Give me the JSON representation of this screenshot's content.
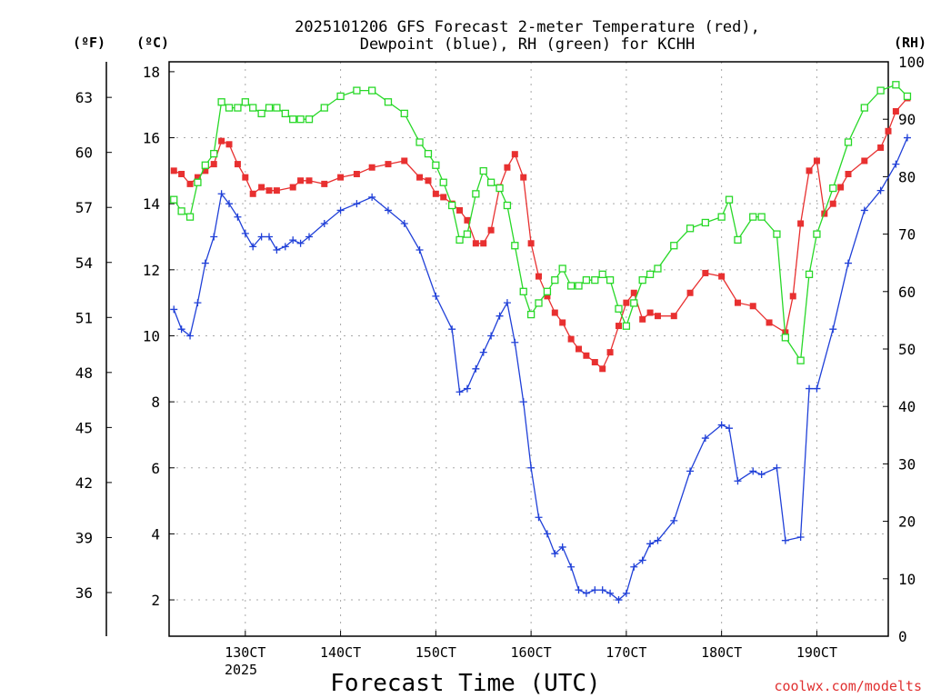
{
  "chart_data": {
    "type": "line",
    "title_line1": "2025101206 GFS Forecast 2-meter Temperature (red),",
    "title_line2": "Dewpoint (blue), RH (green) for KCHH",
    "xlabel": "Forecast Time (UTC)",
    "credit": "coolwx.com/modelts",
    "unit_f": "(ºF)",
    "unit_c": "(ºC)",
    "unit_rh": "(RH)",
    "year_label": "2025",
    "xlim": [
      12.2,
      19.75
    ],
    "ylim_c": [
      0.9,
      18.3
    ],
    "ylim_rh": [
      0,
      100
    ],
    "x_ticks": [
      {
        "x": 13,
        "label": "130CT"
      },
      {
        "x": 14,
        "label": "140CT"
      },
      {
        "x": 15,
        "label": "150CT"
      },
      {
        "x": 16,
        "label": "160CT"
      },
      {
        "x": 17,
        "label": "170CT"
      },
      {
        "x": 18,
        "label": "180CT"
      },
      {
        "x": 19,
        "label": "190CT"
      }
    ],
    "c_ticks": [
      2,
      4,
      6,
      8,
      10,
      12,
      14,
      16,
      18
    ],
    "f_ticks": [
      36,
      39,
      42,
      45,
      48,
      51,
      54,
      57,
      60,
      63
    ],
    "rh_ticks": [
      0,
      10,
      20,
      30,
      40,
      50,
      60,
      70,
      80,
      90,
      100
    ],
    "series": [
      {
        "name": "Temperature",
        "color": "#e83030",
        "marker": "filled-square",
        "axis": "c",
        "points": [
          [
            12.25,
            15.0
          ],
          [
            12.33,
            14.9
          ],
          [
            12.42,
            14.6
          ],
          [
            12.5,
            14.8
          ],
          [
            12.58,
            15.0
          ],
          [
            12.67,
            15.2
          ],
          [
            12.75,
            15.9
          ],
          [
            12.83,
            15.8
          ],
          [
            12.92,
            15.2
          ],
          [
            13.0,
            14.8
          ],
          [
            13.08,
            14.3
          ],
          [
            13.17,
            14.5
          ],
          [
            13.25,
            14.4
          ],
          [
            13.33,
            14.4
          ],
          [
            13.5,
            14.5
          ],
          [
            13.58,
            14.7
          ],
          [
            13.67,
            14.7
          ],
          [
            13.83,
            14.6
          ],
          [
            14.0,
            14.8
          ],
          [
            14.17,
            14.9
          ],
          [
            14.33,
            15.1
          ],
          [
            14.5,
            15.2
          ],
          [
            14.67,
            15.3
          ],
          [
            14.83,
            14.8
          ],
          [
            14.92,
            14.7
          ],
          [
            15.0,
            14.3
          ],
          [
            15.08,
            14.2
          ],
          [
            15.17,
            14.0
          ],
          [
            15.25,
            13.8
          ],
          [
            15.33,
            13.5
          ],
          [
            15.42,
            12.8
          ],
          [
            15.5,
            12.8
          ],
          [
            15.58,
            13.2
          ],
          [
            15.67,
            14.5
          ],
          [
            15.75,
            15.1
          ],
          [
            15.83,
            15.5
          ],
          [
            15.92,
            14.8
          ],
          [
            16.0,
            12.8
          ],
          [
            16.08,
            11.8
          ],
          [
            16.17,
            11.2
          ],
          [
            16.25,
            10.7
          ],
          [
            16.33,
            10.4
          ],
          [
            16.42,
            9.9
          ],
          [
            16.5,
            9.6
          ],
          [
            16.58,
            9.4
          ],
          [
            16.67,
            9.2
          ],
          [
            16.75,
            9.0
          ],
          [
            16.83,
            9.5
          ],
          [
            16.92,
            10.3
          ],
          [
            17.0,
            11.0
          ],
          [
            17.08,
            11.3
          ],
          [
            17.17,
            10.5
          ],
          [
            17.25,
            10.7
          ],
          [
            17.33,
            10.6
          ],
          [
            17.5,
            10.6
          ],
          [
            17.67,
            11.3
          ],
          [
            17.83,
            11.9
          ],
          [
            18.0,
            11.8
          ],
          [
            18.17,
            11.0
          ],
          [
            18.33,
            10.9
          ],
          [
            18.5,
            10.4
          ],
          [
            18.67,
            10.1
          ],
          [
            18.75,
            11.2
          ],
          [
            18.83,
            13.4
          ],
          [
            18.92,
            15.0
          ],
          [
            19.0,
            15.3
          ],
          [
            19.08,
            13.7
          ],
          [
            19.17,
            14.0
          ],
          [
            19.25,
            14.5
          ],
          [
            19.33,
            14.9
          ],
          [
            19.5,
            15.3
          ],
          [
            19.67,
            15.7
          ],
          [
            19.75,
            16.2
          ],
          [
            19.83,
            16.8
          ],
          [
            19.95,
            17.2
          ]
        ]
      },
      {
        "name": "Dewpoint",
        "color": "#2040d8",
        "marker": "plus",
        "axis": "c",
        "points": [
          [
            12.25,
            10.8
          ],
          [
            12.33,
            10.2
          ],
          [
            12.42,
            10.0
          ],
          [
            12.5,
            11.0
          ],
          [
            12.58,
            12.2
          ],
          [
            12.67,
            13.0
          ],
          [
            12.75,
            14.3
          ],
          [
            12.83,
            14.0
          ],
          [
            12.92,
            13.6
          ],
          [
            13.0,
            13.1
          ],
          [
            13.08,
            12.7
          ],
          [
            13.17,
            13.0
          ],
          [
            13.25,
            13.0
          ],
          [
            13.33,
            12.6
          ],
          [
            13.42,
            12.7
          ],
          [
            13.5,
            12.9
          ],
          [
            13.58,
            12.8
          ],
          [
            13.67,
            13.0
          ],
          [
            13.83,
            13.4
          ],
          [
            14.0,
            13.8
          ],
          [
            14.17,
            14.0
          ],
          [
            14.33,
            14.2
          ],
          [
            14.5,
            13.8
          ],
          [
            14.67,
            13.4
          ],
          [
            14.83,
            12.6
          ],
          [
            15.0,
            11.2
          ],
          [
            15.17,
            10.2
          ],
          [
            15.25,
            8.3
          ],
          [
            15.33,
            8.4
          ],
          [
            15.42,
            9.0
          ],
          [
            15.5,
            9.5
          ],
          [
            15.58,
            10.0
          ],
          [
            15.67,
            10.6
          ],
          [
            15.75,
            11.0
          ],
          [
            15.83,
            9.8
          ],
          [
            15.92,
            8.0
          ],
          [
            16.0,
            6.0
          ],
          [
            16.08,
            4.5
          ],
          [
            16.17,
            4.0
          ],
          [
            16.25,
            3.4
          ],
          [
            16.33,
            3.6
          ],
          [
            16.42,
            3.0
          ],
          [
            16.5,
            2.3
          ],
          [
            16.58,
            2.2
          ],
          [
            16.67,
            2.3
          ],
          [
            16.75,
            2.3
          ],
          [
            16.83,
            2.2
          ],
          [
            16.92,
            2.0
          ],
          [
            17.0,
            2.2
          ],
          [
            17.08,
            3.0
          ],
          [
            17.17,
            3.2
          ],
          [
            17.25,
            3.7
          ],
          [
            17.33,
            3.8
          ],
          [
            17.5,
            4.4
          ],
          [
            17.67,
            5.9
          ],
          [
            17.83,
            6.9
          ],
          [
            18.0,
            7.3
          ],
          [
            18.08,
            7.2
          ],
          [
            18.17,
            5.6
          ],
          [
            18.33,
            5.9
          ],
          [
            18.42,
            5.8
          ],
          [
            18.58,
            6.0
          ],
          [
            18.67,
            3.8
          ],
          [
            18.83,
            3.9
          ],
          [
            18.92,
            8.4
          ],
          [
            19.0,
            8.4
          ],
          [
            19.17,
            10.2
          ],
          [
            19.33,
            12.2
          ],
          [
            19.5,
            13.8
          ],
          [
            19.67,
            14.4
          ],
          [
            19.83,
            15.2
          ],
          [
            19.95,
            16.0
          ]
        ]
      },
      {
        "name": "RH",
        "color": "#28d828",
        "marker": "open-square",
        "axis": "rh",
        "points": [
          [
            12.25,
            76
          ],
          [
            12.33,
            74
          ],
          [
            12.42,
            73
          ],
          [
            12.5,
            79
          ],
          [
            12.58,
            82
          ],
          [
            12.67,
            84
          ],
          [
            12.75,
            93
          ],
          [
            12.83,
            92
          ],
          [
            12.92,
            92
          ],
          [
            13.0,
            93
          ],
          [
            13.08,
            92
          ],
          [
            13.17,
            91
          ],
          [
            13.25,
            92
          ],
          [
            13.33,
            92
          ],
          [
            13.42,
            91
          ],
          [
            13.5,
            90
          ],
          [
            13.58,
            90
          ],
          [
            13.67,
            90
          ],
          [
            13.83,
            92
          ],
          [
            14.0,
            94
          ],
          [
            14.17,
            95
          ],
          [
            14.33,
            95
          ],
          [
            14.5,
            93
          ],
          [
            14.67,
            91
          ],
          [
            14.83,
            86
          ],
          [
            14.92,
            84
          ],
          [
            15.0,
            82
          ],
          [
            15.08,
            79
          ],
          [
            15.17,
            75
          ],
          [
            15.25,
            69
          ],
          [
            15.33,
            70
          ],
          [
            15.42,
            77
          ],
          [
            15.5,
            81
          ],
          [
            15.58,
            79
          ],
          [
            15.67,
            78
          ],
          [
            15.75,
            75
          ],
          [
            15.83,
            68
          ],
          [
            15.92,
            60
          ],
          [
            16.0,
            56
          ],
          [
            16.08,
            58
          ],
          [
            16.17,
            60
          ],
          [
            16.25,
            62
          ],
          [
            16.33,
            64
          ],
          [
            16.42,
            61
          ],
          [
            16.5,
            61
          ],
          [
            16.58,
            62
          ],
          [
            16.67,
            62
          ],
          [
            16.75,
            63
          ],
          [
            16.83,
            62
          ],
          [
            16.92,
            57
          ],
          [
            17.0,
            54
          ],
          [
            17.08,
            58
          ],
          [
            17.17,
            62
          ],
          [
            17.25,
            63
          ],
          [
            17.33,
            64
          ],
          [
            17.5,
            68
          ],
          [
            17.67,
            71
          ],
          [
            17.83,
            72
          ],
          [
            18.0,
            73
          ],
          [
            18.08,
            76
          ],
          [
            18.17,
            69
          ],
          [
            18.33,
            73
          ],
          [
            18.42,
            73
          ],
          [
            18.58,
            70
          ],
          [
            18.67,
            52
          ],
          [
            18.83,
            48
          ],
          [
            18.92,
            63
          ],
          [
            19.0,
            70
          ],
          [
            19.17,
            78
          ],
          [
            19.33,
            86
          ],
          [
            19.5,
            92
          ],
          [
            19.67,
            95
          ],
          [
            19.83,
            96
          ],
          [
            19.95,
            94
          ]
        ]
      }
    ]
  }
}
